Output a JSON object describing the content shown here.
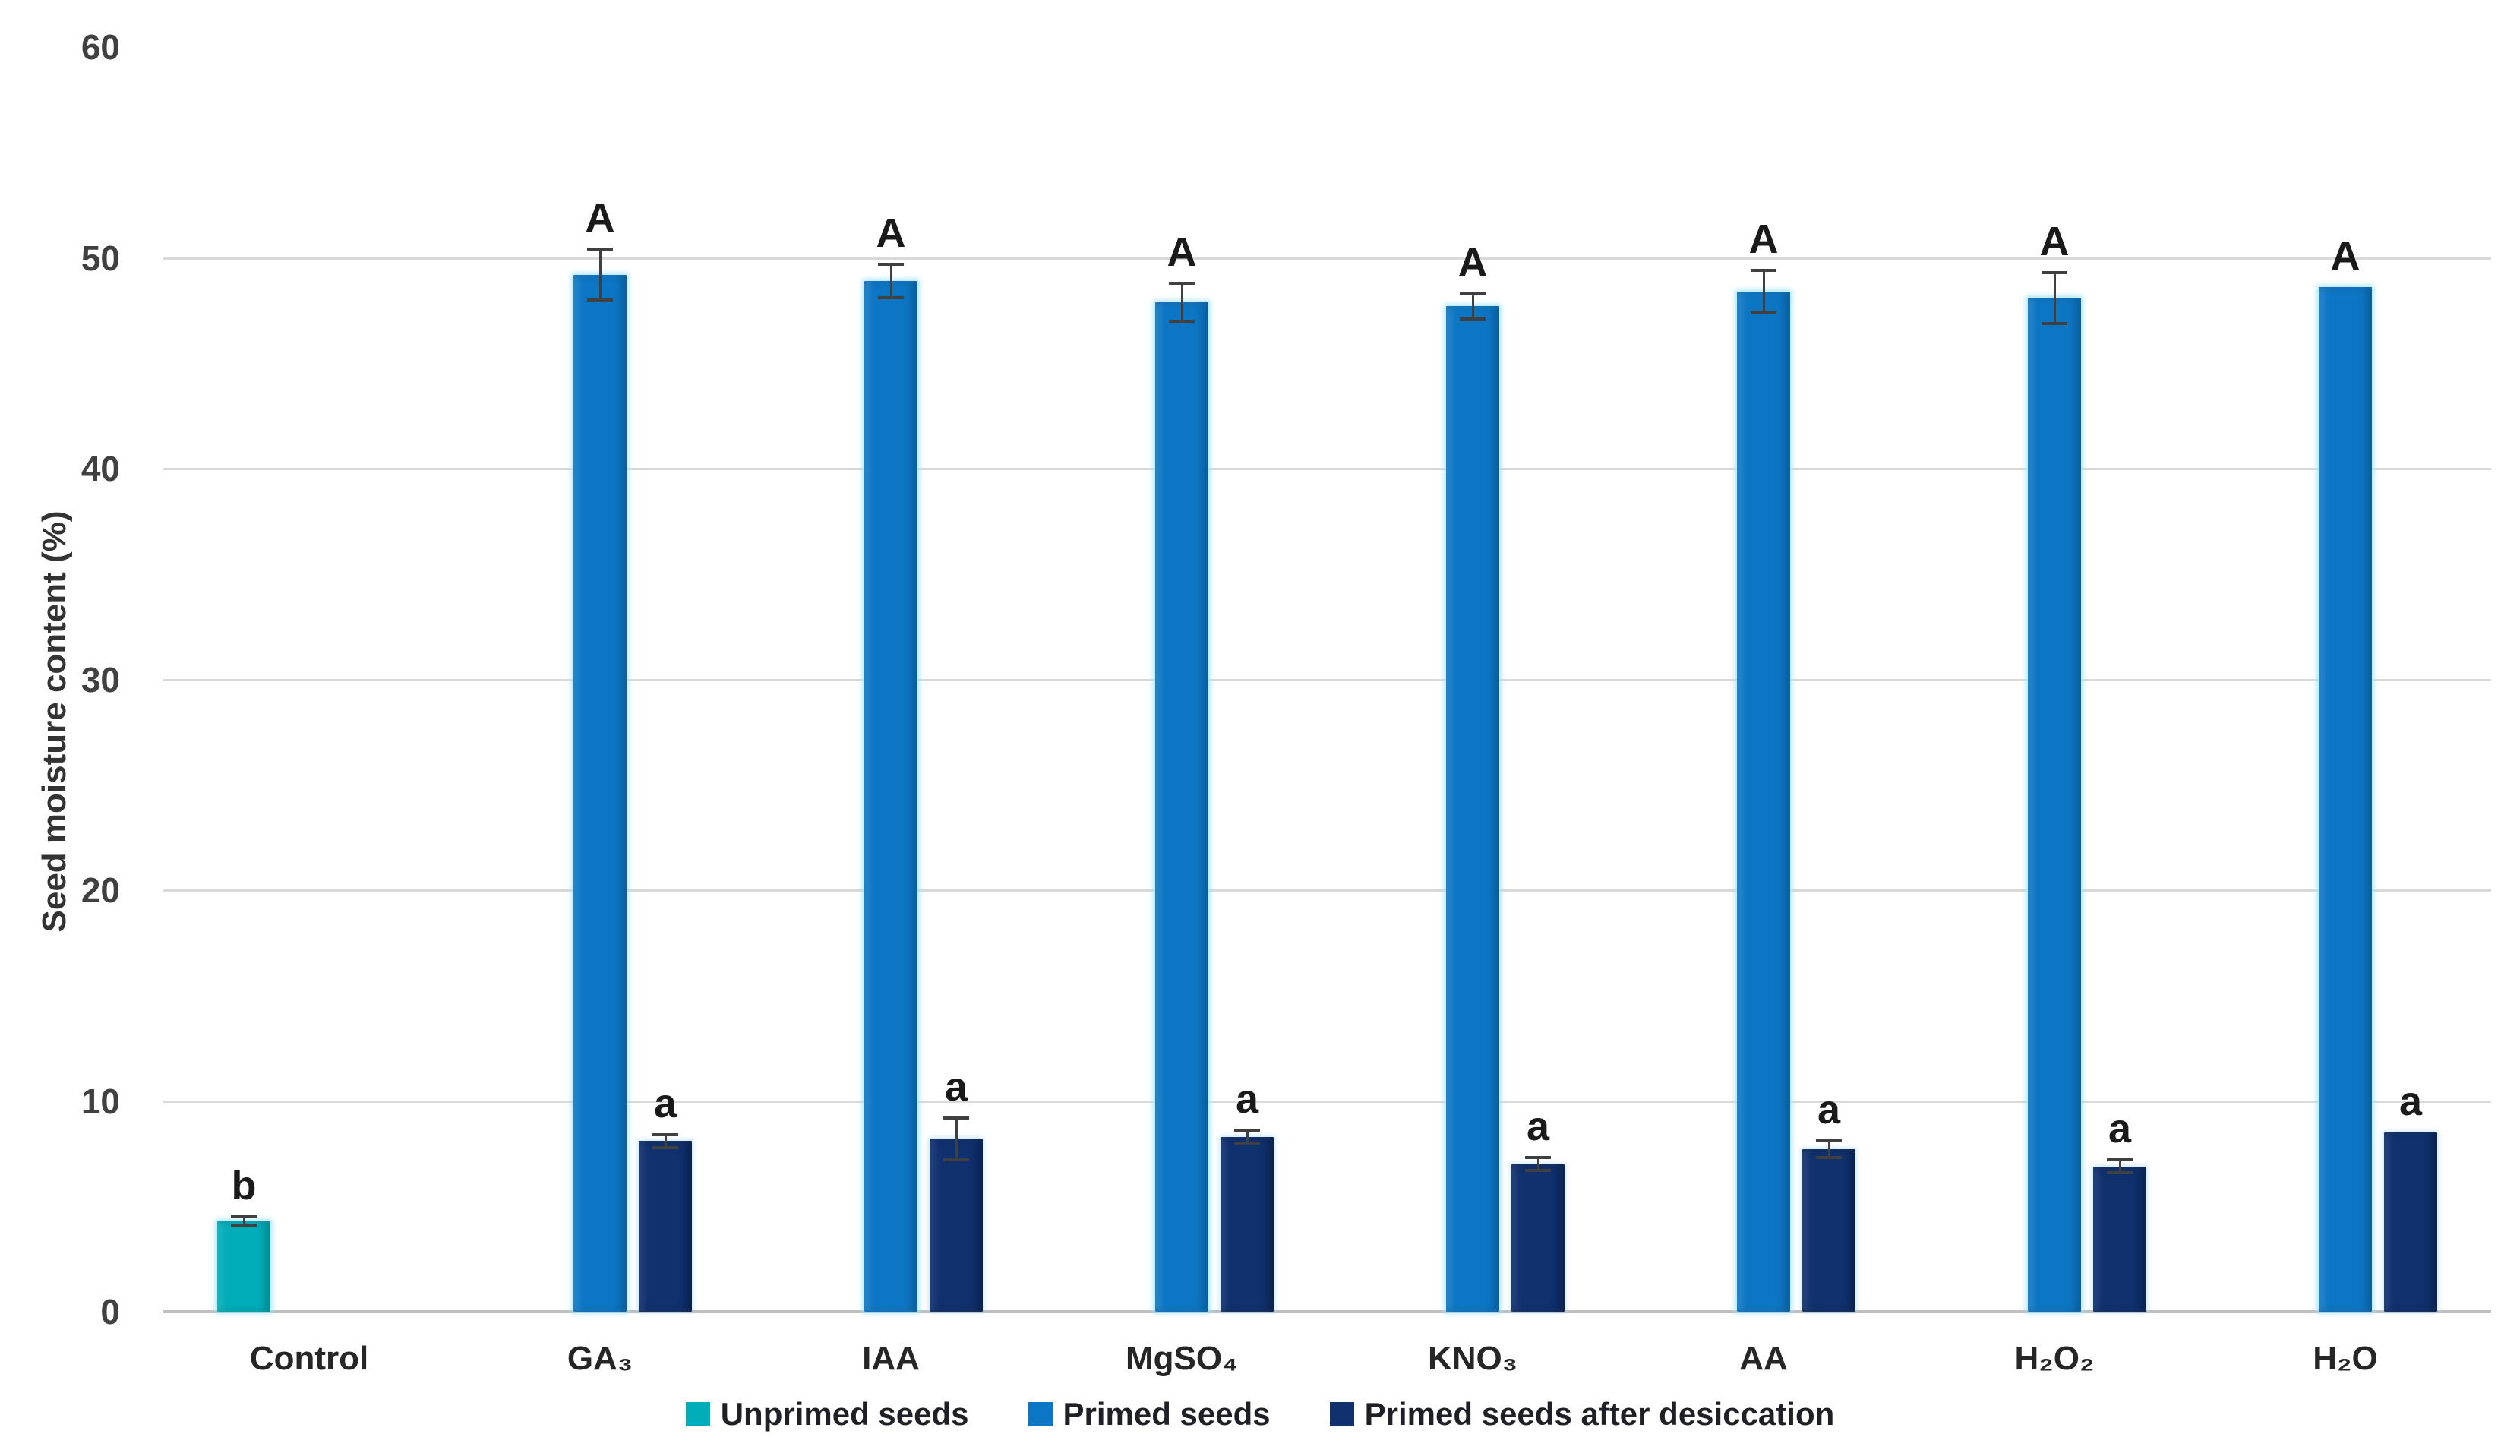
{
  "figure": {
    "background": "#ffffff"
  },
  "axes": {
    "y_title": "Seed moisture content (%)",
    "tick_color": "#404040",
    "gridline_color": "#d9d9d9",
    "baseline_color": "#bfbfbf"
  },
  "chart_data": {
    "type": "bar",
    "title": "",
    "xlabel": "",
    "ylabel": "Seed moisture content (%)",
    "ylim": [
      0,
      60
    ],
    "yticks": [
      0,
      10,
      20,
      30,
      40,
      50,
      60
    ],
    "grid": true,
    "legend_position": "bottom",
    "categories": [
      "Control",
      "GA₃",
      "IAA",
      "MgSO₄",
      "KNO₃",
      "AA",
      "H₂O₂",
      "H₂O"
    ],
    "series": [
      {
        "name": "Unprimed seeds",
        "color": "#00adb8",
        "glow": "strong",
        "values": [
          4.3,
          null,
          null,
          null,
          null,
          null,
          null,
          null
        ],
        "errors": [
          0.2,
          null,
          null,
          null,
          null,
          null,
          null,
          null
        ],
        "letters": [
          "b",
          null,
          null,
          null,
          null,
          null,
          null,
          null
        ]
      },
      {
        "name": "Primed seeds",
        "color": "#0d76c4",
        "glow": "strong",
        "values": [
          null,
          49.2,
          48.9,
          47.9,
          47.7,
          48.4,
          48.1,
          48.6
        ],
        "errors": [
          null,
          1.2,
          0.8,
          0.9,
          0.6,
          1.0,
          1.2,
          0
        ],
        "letters": [
          null,
          "A",
          "A",
          "A",
          "A",
          "A",
          "A",
          "A"
        ]
      },
      {
        "name": "Primed seeds after desiccation",
        "color": "#10306e",
        "glow": "soft",
        "values": [
          null,
          8.1,
          8.2,
          8.3,
          7.0,
          7.7,
          6.9,
          8.5
        ],
        "errors": [
          null,
          0.3,
          1.0,
          0.3,
          0.3,
          0.4,
          0.3,
          0
        ],
        "letters": [
          null,
          "a",
          "a",
          "a",
          "a",
          "a",
          "a",
          "a"
        ]
      }
    ]
  }
}
